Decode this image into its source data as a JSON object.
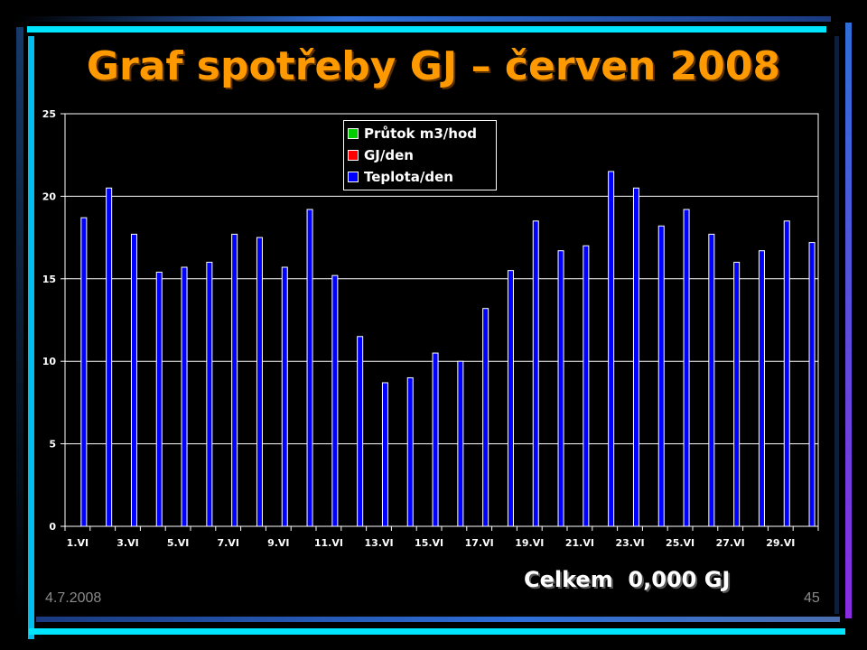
{
  "slide": {
    "title": "Graf spotřeby GJ – červen 2008",
    "total_label": "Celkem  0,000 GJ",
    "date": "4.7.2008",
    "page_number": "45"
  },
  "colors": {
    "title": "#FF9900",
    "bar": "#0000FF",
    "flow": "#00CC00",
    "gj": "#FF0000",
    "grid": "#FFFFFF",
    "frame_cyan": "#00E5FF",
    "frame_blue": "#2E6FD8",
    "frame_purple": "#8A2BE2"
  },
  "chart_data": {
    "type": "bar",
    "categories": [
      "1.VI",
      "2.VI",
      "3.VI",
      "4.VI",
      "5.VI",
      "6.VI",
      "7.VI",
      "8.VI",
      "9.VI",
      "10.VI",
      "11.VI",
      "12.VI",
      "13.VI",
      "14.VI",
      "15.VI",
      "16.VI",
      "17.VI",
      "18.VI",
      "19.VI",
      "20.VI",
      "21.VI",
      "22.VI",
      "23.VI",
      "24.VI",
      "25.VI",
      "26.VI",
      "27.VI",
      "28.VI",
      "29.VI",
      "30.VI"
    ],
    "tick_labels": [
      "1.VI",
      "3.VI",
      "5.VI",
      "7.VI",
      "9.VI",
      "11.VI",
      "13.VI",
      "15.VI",
      "17.VI",
      "19.VI",
      "21.VI",
      "23.VI",
      "25.VI",
      "27.VI",
      "29.VI"
    ],
    "series": [
      {
        "name": "Průtok m3/hod",
        "color": "#00CC00",
        "values": [
          0,
          0,
          0,
          0,
          0,
          0,
          0,
          0,
          0,
          0,
          0,
          0,
          0,
          0,
          0,
          0,
          0,
          0,
          0,
          0,
          0,
          0,
          0,
          0,
          0,
          0,
          0,
          0,
          0,
          0
        ]
      },
      {
        "name": "GJ/den",
        "color": "#FF0000",
        "values": [
          0,
          0,
          0,
          0,
          0,
          0,
          0,
          0,
          0,
          0,
          0,
          0,
          0,
          0,
          0,
          0,
          0,
          0,
          0,
          0,
          0,
          0,
          0,
          0,
          0,
          0,
          0,
          0,
          0,
          0
        ]
      },
      {
        "name": "Teplota/den",
        "color": "#0000FF",
        "values": [
          18.7,
          20.5,
          17.7,
          15.4,
          15.7,
          16.0,
          17.7,
          17.5,
          15.7,
          19.2,
          15.2,
          11.5,
          8.7,
          9.0,
          10.5,
          10.0,
          13.2,
          15.5,
          18.5,
          16.7,
          17.0,
          21.5,
          20.5,
          18.2,
          19.2,
          17.7,
          16.0,
          16.7,
          18.5,
          17.2
        ]
      }
    ],
    "yticks": [
      "0",
      "5",
      "10",
      "15",
      "20",
      "25"
    ],
    "ylim": [
      0,
      25
    ],
    "grid": true,
    "legend_position": "top-center"
  }
}
